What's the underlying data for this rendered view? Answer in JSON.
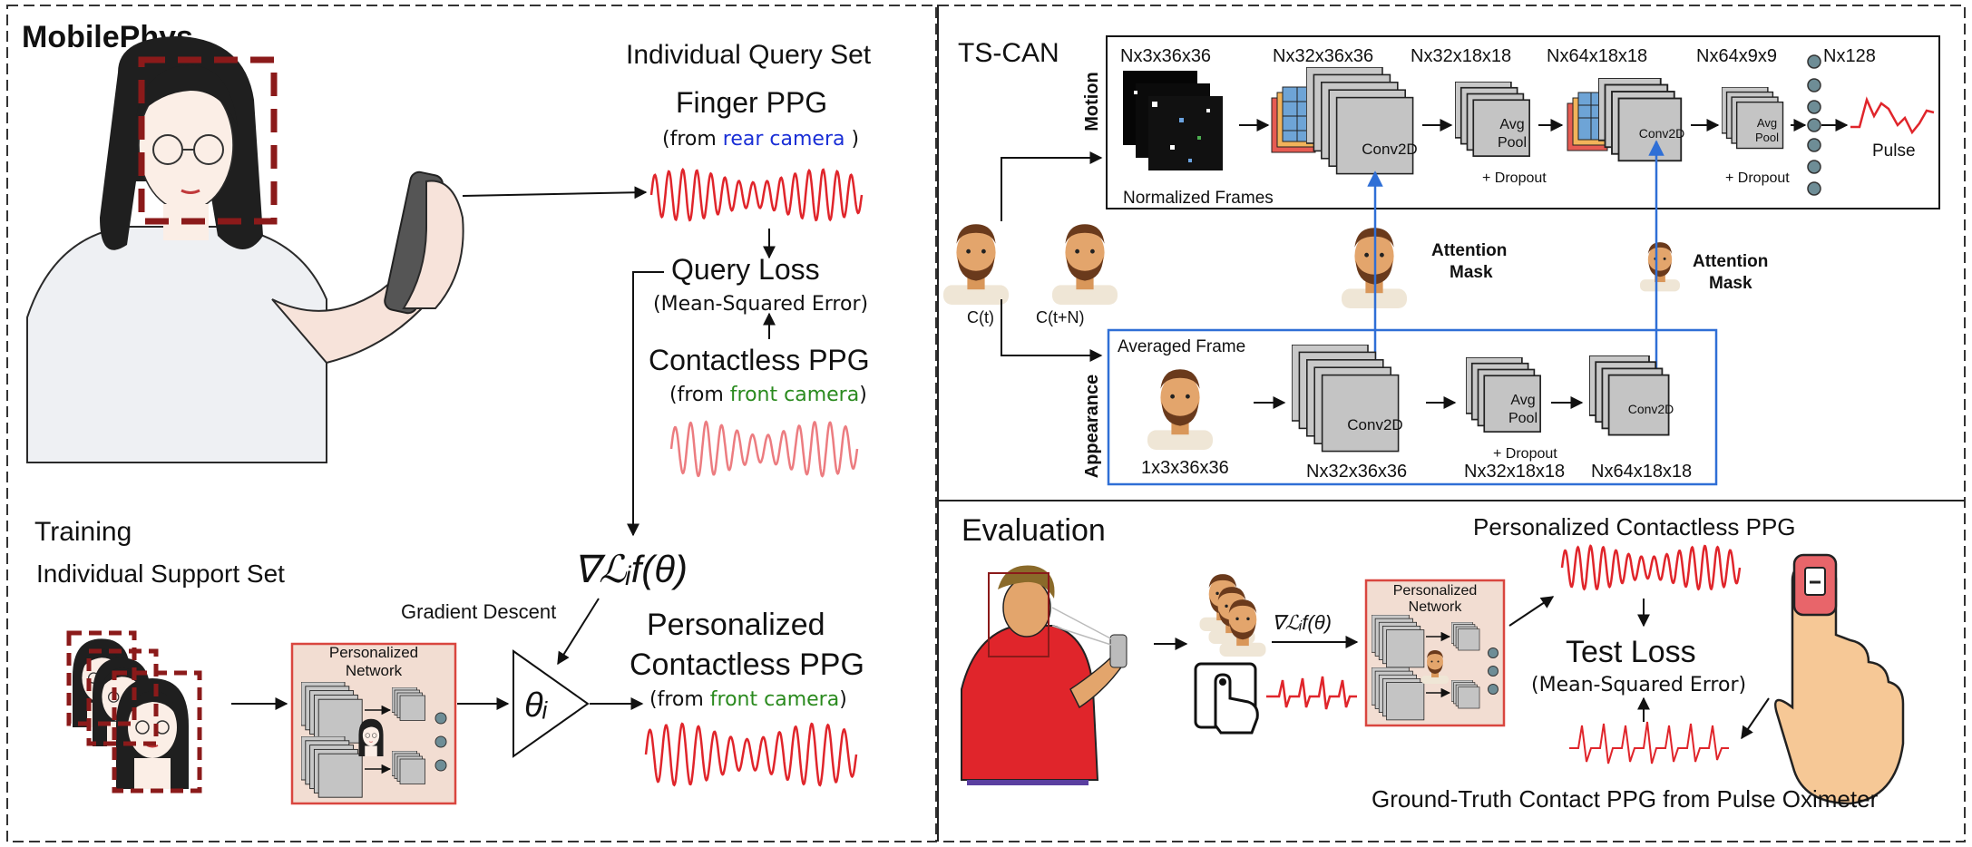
{
  "mobilephys": {
    "title": "MobilePhys",
    "query_set_title": "Individual Query Set",
    "finger_ppg": "Finger PPG",
    "finger_src_prefix": "(from ",
    "finger_src_cam": "rear camera",
    "finger_src_suffix": " )",
    "query_loss": "Query Loss",
    "query_loss_sub": "(Mean-Squared Error)",
    "contactless_ppg": "Contactless PPG",
    "contactless_src_prefix": "(from ",
    "contactless_src_cam": "front camera",
    "contactless_src_suffix": ")",
    "training": "Training",
    "support_set": "Individual Support Set",
    "personalized_network": "Personalized Network",
    "personalized_network_l1": "Personalized",
    "personalized_network_l2": "Network",
    "gradient_formula": "∇ℒᵢf(θ)",
    "gradient_descent": "Gradient Descent",
    "theta": "θᵢ",
    "personalized_ppg_l1": "Personalized",
    "personalized_ppg_l2": "Contactless PPG",
    "personalized_src_prefix": "(from ",
    "personalized_src_cam": "front camera",
    "personalized_src_suffix": ")"
  },
  "tscan": {
    "title": "TS-CAN",
    "motion_label": "Motion",
    "appearance_label": "Appearance",
    "motion_dims": [
      "Nx3x36x36",
      "Nx32x36x36",
      "Nx32x18x18",
      "Nx64x18x18",
      "Nx64x9x9",
      "Nx128"
    ],
    "normalized_frames": "Normalized Frames",
    "conv2d": "Conv2D",
    "avg": "Avg",
    "pool": "Pool",
    "dropout": "+ Dropout",
    "pulse": "Pulse",
    "attention": "Attention",
    "mask": "Mask",
    "ct": "C(t)",
    "ctn": "C(t+N)",
    "averaged_frame": "Averaged Frame",
    "appearance_dims": [
      "1x3x36x36",
      "Nx32x36x36",
      "Nx32x18x18",
      "Nx64x18x18"
    ]
  },
  "evaluation": {
    "title": "Evaluation",
    "personalized_ppg": "Personalized Contactless PPG",
    "gradient_formula": "∇ℒᵢf(θ)",
    "network_l1": "Personalized",
    "network_l2": "Network",
    "test_loss": "Test Loss",
    "test_loss_sub": "(Mean-Squared Error)",
    "ground_truth": "Ground-Truth Contact PPG from Pulse Oximeter"
  },
  "colors": {
    "wave_red": "#e0252b",
    "rear_blue": "#1a2fd6",
    "front_green": "#2a8a1e",
    "dashed_box": "#8b1a1a",
    "network_fill": "#f2ddd2",
    "network_border": "#d9463f",
    "attention_blue": "#2f6fd6"
  }
}
